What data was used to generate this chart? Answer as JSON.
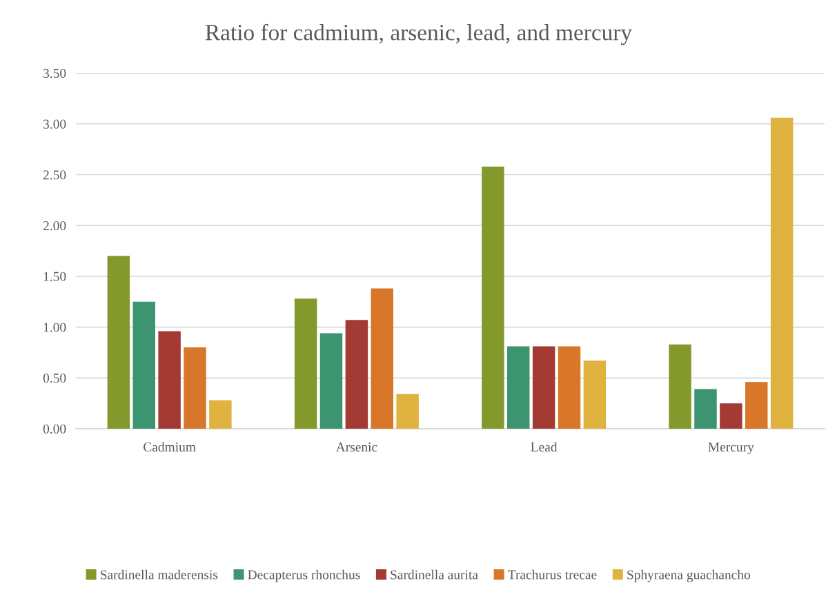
{
  "chart_data": {
    "type": "bar",
    "title": "Ratio for cadmium, arsenic, lead, and mercury",
    "categories": [
      "Cadmium",
      "Arsenic",
      "Lead",
      "Mercury"
    ],
    "series": [
      {
        "name": "Sardinella maderensis",
        "color": "#84992b",
        "values": [
          1.7,
          1.28,
          2.58,
          0.83
        ]
      },
      {
        "name": "Decapterus rhonchus",
        "color": "#3c9470",
        "values": [
          1.25,
          0.94,
          0.81,
          0.39
        ]
      },
      {
        "name": "Sardinella aurita",
        "color": "#a33a33",
        "values": [
          0.96,
          1.07,
          0.81,
          0.25
        ]
      },
      {
        "name": "Trachurus trecae",
        "color": "#d8772a",
        "values": [
          0.8,
          1.38,
          0.81,
          0.46
        ]
      },
      {
        "name": "Sphyraena guachancho",
        "color": "#e0b341",
        "values": [
          0.28,
          0.34,
          0.67,
          3.06
        ]
      }
    ],
    "ylim": [
      0,
      3.5
    ],
    "yticks": [
      {
        "value": 0,
        "label": "0.00"
      },
      {
        "value": 0.5,
        "label": "0.50"
      },
      {
        "value": 1,
        "label": "1.00"
      },
      {
        "value": 1.5,
        "label": "1.50"
      },
      {
        "value": 2,
        "label": "2.00"
      },
      {
        "value": 2.5,
        "label": "2.50"
      },
      {
        "value": 3,
        "label": "3.00"
      },
      {
        "value": 3.5,
        "label": "3.50"
      }
    ],
    "grid": "y",
    "legend": "bottom"
  }
}
